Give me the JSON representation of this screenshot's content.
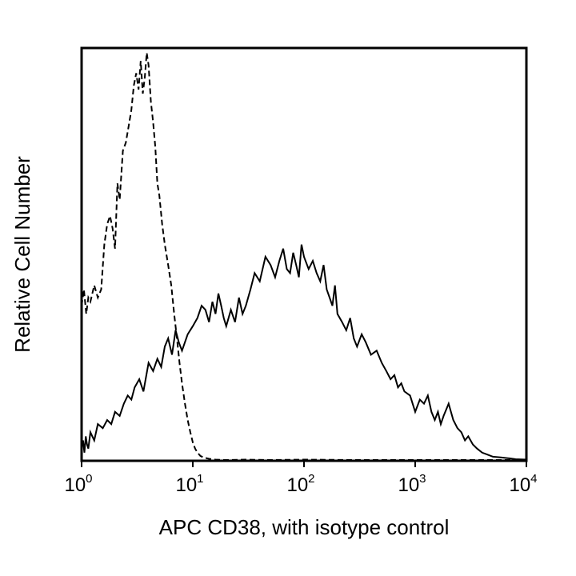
{
  "chart_data": {
    "type": "line",
    "xlabel": "APC CD38, with isotype control",
    "ylabel": "Relative Cell Number",
    "x_scale": "log",
    "xlim": [
      1,
      10000
    ],
    "ylim": [
      0,
      100
    ],
    "grid": false,
    "x_ticks": [
      {
        "base": "10",
        "exp": "0",
        "value": 1
      },
      {
        "base": "10",
        "exp": "1",
        "value": 10
      },
      {
        "base": "10",
        "exp": "2",
        "value": 100
      },
      {
        "base": "10",
        "exp": "3",
        "value": 1000
      },
      {
        "base": "10",
        "exp": "4",
        "value": 10000
      }
    ],
    "series": [
      {
        "style": "dashed",
        "color": "#000000",
        "x": [
          1.0,
          1.05,
          1.1,
          1.15,
          1.2,
          1.3,
          1.4,
          1.5,
          1.6,
          1.7,
          1.8,
          1.9,
          2.0,
          2.1,
          2.2,
          2.35,
          2.5,
          2.65,
          2.8,
          2.95,
          3.1,
          3.25,
          3.4,
          3.55,
          3.7,
          3.85,
          4.0,
          4.2,
          4.4,
          4.6,
          4.8,
          5.0,
          5.3,
          5.6,
          6.0,
          6.4,
          6.8,
          7.2,
          7.6,
          8.0,
          8.5,
          9.0,
          9.5,
          10.0,
          10.5,
          11.0,
          11.7,
          12.5,
          14,
          16,
          20,
          30,
          50,
          100,
          300,
          1000,
          3000,
          10000
        ],
        "y": [
          38,
          42,
          36,
          40,
          39,
          43,
          40,
          42,
          53,
          58,
          60,
          57,
          52,
          68,
          64,
          76,
          78,
          82,
          86,
          92,
          95,
          91,
          98,
          90,
          94,
          100,
          97,
          88,
          83,
          77,
          68,
          65,
          58,
          53,
          48,
          43,
          36,
          30,
          24,
          19,
          14,
          10,
          7,
          4.5,
          3,
          2,
          1.2,
          0.8,
          0.5,
          0.3,
          0.2,
          0.3,
          0.2,
          0.3,
          0.2,
          0.2,
          0.2,
          0.2
        ]
      },
      {
        "style": "solid",
        "color": "#000000",
        "x": [
          1.0,
          1.03,
          1.06,
          1.09,
          1.12,
          1.15,
          1.2,
          1.3,
          1.4,
          1.55,
          1.7,
          1.85,
          2.0,
          2.2,
          2.4,
          2.6,
          2.8,
          3.0,
          3.3,
          3.6,
          4.0,
          4.4,
          4.8,
          5.2,
          5.6,
          6.0,
          6.5,
          7.0,
          7.5,
          8.0,
          9.0,
          10,
          11,
          12,
          13,
          14,
          15,
          16,
          17,
          18,
          19,
          20,
          22,
          24,
          26,
          28,
          30,
          33,
          36,
          40,
          45,
          50,
          55,
          60,
          65,
          70,
          75,
          80,
          85,
          90,
          95,
          100,
          110,
          120,
          130,
          140,
          150,
          160,
          170,
          180,
          190,
          200,
          220,
          240,
          260,
          280,
          300,
          330,
          360,
          400,
          450,
          500,
          550,
          600,
          650,
          700,
          750,
          800,
          900,
          1000,
          1100,
          1200,
          1300,
          1400,
          1500,
          1600,
          1700,
          1800,
          2000,
          2200,
          2400,
          2600,
          2800,
          3000,
          3300,
          3600,
          4000,
          4500,
          5000,
          6000,
          7000,
          8000,
          10000
        ],
        "y": [
          3,
          5,
          2,
          6,
          4,
          3,
          7,
          5,
          9,
          8,
          10,
          9,
          12,
          11,
          14,
          16,
          15,
          18,
          20,
          17,
          24,
          22,
          25,
          23,
          28,
          30,
          26,
          32,
          29,
          27,
          31,
          33,
          35,
          38,
          37,
          34,
          39,
          36,
          41,
          38,
          35,
          33,
          37,
          34,
          40,
          36,
          38,
          42,
          46,
          44,
          50,
          48,
          45,
          49,
          52,
          47,
          46,
          51,
          48,
          45,
          53,
          50,
          47,
          49,
          46,
          44,
          48,
          42,
          40,
          38,
          43,
          36,
          34,
          32,
          35,
          30,
          28,
          31,
          29,
          26,
          27,
          24,
          22,
          20,
          21,
          18,
          19,
          17,
          16,
          12,
          15,
          14,
          16,
          12,
          10,
          12,
          9,
          11,
          14,
          10,
          8,
          7,
          5,
          6,
          4,
          3,
          2,
          1.5,
          1,
          0.8,
          0.6,
          0.4,
          0.3
        ]
      }
    ]
  }
}
